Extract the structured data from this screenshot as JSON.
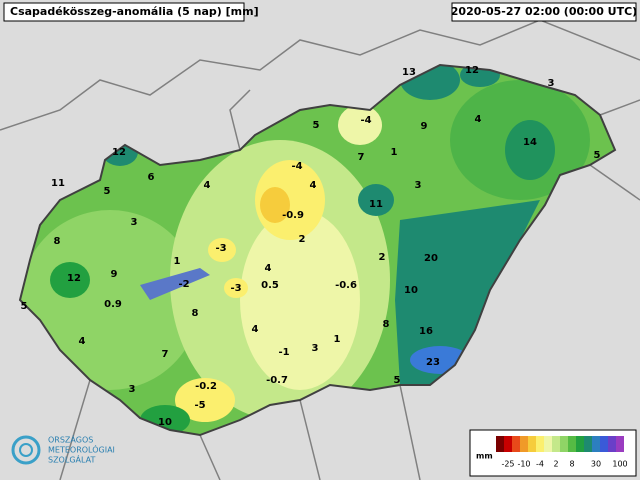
{
  "header": {
    "title": "Csapadékösszeg-anomália (5 nap) [mm]",
    "timestamp": "2020-05-27 02:00 (00:00 UTC)"
  },
  "map": {
    "values": [
      13,
      12,
      3,
      -4,
      5,
      9,
      4,
      14,
      5,
      12,
      7,
      1,
      -4,
      6,
      4,
      4,
      3,
      11,
      5,
      11,
      -0.9,
      3,
      8,
      -3,
      2,
      20,
      1,
      2,
      12,
      9,
      -2,
      -3,
      4,
      0.5,
      -0.6,
      10,
      5,
      0.9,
      8,
      4,
      8,
      16,
      4,
      1,
      7,
      -1,
      3,
      23,
      3,
      -0.2,
      -0.7,
      5,
      -5,
      10
    ]
  },
  "legend": {
    "unit": "mm",
    "ticks": [
      -25,
      -10,
      -4,
      2,
      8,
      30,
      100
    ],
    "colors": [
      "#7a0000",
      "#c80000",
      "#e84a1a",
      "#f09a28",
      "#f6cc3c",
      "#fbef6e",
      "#eef6a8",
      "#c4e88a",
      "#8fd466",
      "#55bb44",
      "#22a040",
      "#1e8a70",
      "#2c7fc0",
      "#3a5ad8",
      "#6a3fc8",
      "#9a3cc0"
    ]
  },
  "logo": {
    "lines": [
      "ORSZÁGOS",
      "METEOROLÓGIAI",
      "SZOLGÁLAT"
    ]
  }
}
